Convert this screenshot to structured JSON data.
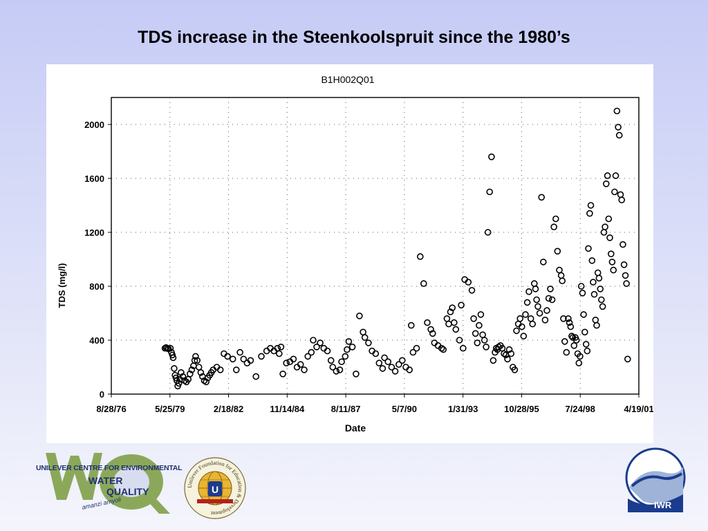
{
  "slide": {
    "title": "TDS increase in the Steenkoolspruit since the 1980’s"
  },
  "chart_data": {
    "type": "scatter",
    "title": "B1H002Q01",
    "xlabel": "Date",
    "ylabel": "TDS (mg/l)",
    "xlim": [
      "1976-08-28",
      "2001-04-19"
    ],
    "ylim": [
      0,
      2200
    ],
    "xticks": [
      "8/28/76",
      "5/25/79",
      "2/18/82",
      "11/14/84",
      "8/11/87",
      "5/7/90",
      "1/31/93",
      "10/28/95",
      "7/24/98",
      "4/19/01"
    ],
    "yticks": [
      "0",
      "400",
      "800",
      "1200",
      "1600",
      "2000"
    ],
    "grid": true,
    "legend": "none",
    "points": [
      [
        "1979-03-01",
        340
      ],
      [
        "1979-03-20",
        345
      ],
      [
        "1979-04-10",
        340
      ],
      [
        "1979-05-01",
        335
      ],
      [
        "1979-06-01",
        340
      ],
      [
        "1979-06-20",
        310
      ],
      [
        "1979-07-05",
        290
      ],
      [
        "1979-07-20",
        270
      ],
      [
        "1979-08-05",
        190
      ],
      [
        "1979-08-20",
        140
      ],
      [
        "1979-09-05",
        120
      ],
      [
        "1979-09-20",
        100
      ],
      [
        "1979-10-05",
        60
      ],
      [
        "1979-10-25",
        80
      ],
      [
        "1979-11-10",
        110
      ],
      [
        "1979-12-01",
        160
      ],
      [
        "1980-01-01",
        130
      ],
      [
        "1980-02-01",
        100
      ],
      [
        "1980-03-01",
        90
      ],
      [
        "1980-04-01",
        110
      ],
      [
        "1980-05-01",
        150
      ],
      [
        "1980-06-01",
        180
      ],
      [
        "1980-07-01",
        210
      ],
      [
        "1980-07-20",
        250
      ],
      [
        "1980-08-05",
        280
      ],
      [
        "1980-09-01",
        250
      ],
      [
        "1980-10-01",
        200
      ],
      [
        "1980-11-01",
        160
      ],
      [
        "1980-12-01",
        130
      ],
      [
        "1981-01-01",
        100
      ],
      [
        "1981-02-01",
        90
      ],
      [
        "1981-03-01",
        120
      ],
      [
        "1981-04-01",
        140
      ],
      [
        "1981-05-01",
        160
      ],
      [
        "1981-06-01",
        180
      ],
      [
        "1981-08-01",
        200
      ],
      [
        "1981-10-01",
        180
      ],
      [
        "1981-12-01",
        300
      ],
      [
        "1982-02-01",
        280
      ],
      [
        "1982-05-01",
        260
      ],
      [
        "1982-07-01",
        180
      ],
      [
        "1982-09-01",
        310
      ],
      [
        "1982-11-01",
        260
      ],
      [
        "1983-01-01",
        230
      ],
      [
        "1983-03-01",
        250
      ],
      [
        "1983-06-01",
        130
      ],
      [
        "1983-09-01",
        280
      ],
      [
        "1983-12-01",
        320
      ],
      [
        "1984-02-01",
        340
      ],
      [
        "1984-04-01",
        320
      ],
      [
        "1984-06-01",
        340
      ],
      [
        "1984-07-01",
        300
      ],
      [
        "1984-08-01",
        350
      ],
      [
        "1984-09-01",
        150
      ],
      [
        "1984-11-01",
        230
      ],
      [
        "1985-01-01",
        240
      ],
      [
        "1985-03-01",
        260
      ],
      [
        "1985-05-01",
        200
      ],
      [
        "1985-07-01",
        220
      ],
      [
        "1985-09-01",
        180
      ],
      [
        "1985-11-01",
        280
      ],
      [
        "1986-01-01",
        310
      ],
      [
        "1986-02-01",
        400
      ],
      [
        "1986-04-01",
        350
      ],
      [
        "1986-06-01",
        380
      ],
      [
        "1986-08-01",
        340
      ],
      [
        "1986-10-01",
        320
      ],
      [
        "1986-12-01",
        250
      ],
      [
        "1987-01-01",
        200
      ],
      [
        "1987-03-01",
        170
      ],
      [
        "1987-05-01",
        180
      ],
      [
        "1987-06-01",
        240
      ],
      [
        "1987-08-01",
        280
      ],
      [
        "1987-09-01",
        330
      ],
      [
        "1987-10-01",
        390
      ],
      [
        "1987-12-01",
        350
      ],
      [
        "1988-02-01",
        150
      ],
      [
        "1988-04-01",
        580
      ],
      [
        "1988-06-01",
        460
      ],
      [
        "1988-07-01",
        420
      ],
      [
        "1988-09-01",
        380
      ],
      [
        "1988-11-01",
        320
      ],
      [
        "1989-01-01",
        300
      ],
      [
        "1989-03-01",
        230
      ],
      [
        "1989-05-01",
        190
      ],
      [
        "1989-06-01",
        270
      ],
      [
        "1989-08-01",
        240
      ],
      [
        "1989-10-01",
        200
      ],
      [
        "1989-12-01",
        170
      ],
      [
        "1990-02-01",
        220
      ],
      [
        "1990-04-01",
        250
      ],
      [
        "1990-06-01",
        200
      ],
      [
        "1990-08-01",
        180
      ],
      [
        "1990-09-01",
        510
      ],
      [
        "1990-10-01",
        310
      ],
      [
        "1990-12-01",
        340
      ],
      [
        "1991-02-01",
        1020
      ],
      [
        "1991-04-01",
        820
      ],
      [
        "1991-06-01",
        530
      ],
      [
        "1991-08-01",
        480
      ],
      [
        "1991-09-01",
        450
      ],
      [
        "1991-10-01",
        380
      ],
      [
        "1991-12-01",
        360
      ],
      [
        "1992-02-01",
        340
      ],
      [
        "1992-03-01",
        330
      ],
      [
        "1992-05-01",
        560
      ],
      [
        "1992-06-01",
        520
      ],
      [
        "1992-07-01",
        610
      ],
      [
        "1992-08-01",
        640
      ],
      [
        "1992-09-01",
        530
      ],
      [
        "1992-10-01",
        480
      ],
      [
        "1992-12-01",
        400
      ],
      [
        "1993-01-01",
        660
      ],
      [
        "1993-02-01",
        340
      ],
      [
        "1993-03-01",
        850
      ],
      [
        "1993-05-01",
        830
      ],
      [
        "1993-07-01",
        770
      ],
      [
        "1993-08-01",
        560
      ],
      [
        "1993-09-01",
        450
      ],
      [
        "1993-10-01",
        380
      ],
      [
        "1993-11-01",
        510
      ],
      [
        "1993-12-01",
        590
      ],
      [
        "1994-01-01",
        440
      ],
      [
        "1994-02-01",
        400
      ],
      [
        "1994-03-01",
        350
      ],
      [
        "1994-04-01",
        1200
      ],
      [
        "1994-05-01",
        1500
      ],
      [
        "1994-06-01",
        1760
      ],
      [
        "1994-07-01",
        250
      ],
      [
        "1994-08-01",
        310
      ],
      [
        "1994-08-20",
        340
      ],
      [
        "1994-09-10",
        330
      ],
      [
        "1994-10-01",
        350
      ],
      [
        "1994-11-01",
        360
      ],
      [
        "1994-12-01",
        340
      ],
      [
        "1995-01-01",
        300
      ],
      [
        "1995-02-01",
        290
      ],
      [
        "1995-03-01",
        260
      ],
      [
        "1995-04-01",
        330
      ],
      [
        "1995-05-01",
        300
      ],
      [
        "1995-06-01",
        200
      ],
      [
        "1995-07-01",
        180
      ],
      [
        "1995-08-01",
        470
      ],
      [
        "1995-09-01",
        520
      ],
      [
        "1995-10-01",
        560
      ],
      [
        "1995-11-01",
        500
      ],
      [
        "1995-12-01",
        430
      ],
      [
        "1996-01-01",
        590
      ],
      [
        "1996-02-01",
        680
      ],
      [
        "1996-03-01",
        760
      ],
      [
        "1996-04-01",
        560
      ],
      [
        "1996-05-01",
        520
      ],
      [
        "1996-06-01",
        820
      ],
      [
        "1996-06-20",
        780
      ],
      [
        "1996-07-10",
        700
      ],
      [
        "1996-08-01",
        650
      ],
      [
        "1996-09-01",
        600
      ],
      [
        "1996-10-01",
        1460
      ],
      [
        "1996-11-01",
        980
      ],
      [
        "1996-12-01",
        550
      ],
      [
        "1997-01-01",
        620
      ],
      [
        "1997-02-01",
        710
      ],
      [
        "1997-03-01",
        780
      ],
      [
        "1997-04-01",
        700
      ],
      [
        "1997-05-01",
        1240
      ],
      [
        "1997-06-01",
        1300
      ],
      [
        "1997-07-01",
        1060
      ],
      [
        "1997-08-01",
        920
      ],
      [
        "1997-09-01",
        880
      ],
      [
        "1997-09-20",
        840
      ],
      [
        "1997-10-10",
        560
      ],
      [
        "1997-11-01",
        390
      ],
      [
        "1997-12-01",
        310
      ],
      [
        "1998-01-01",
        560
      ],
      [
        "1998-01-20",
        530
      ],
      [
        "1998-02-10",
        500
      ],
      [
        "1998-03-01",
        430
      ],
      [
        "1998-03-20",
        420
      ],
      [
        "1998-04-10",
        360
      ],
      [
        "1998-05-01",
        420
      ],
      [
        "1998-05-20",
        400
      ],
      [
        "1998-06-10",
        300
      ],
      [
        "1998-07-01",
        230
      ],
      [
        "1998-07-20",
        280
      ],
      [
        "1998-08-10",
        800
      ],
      [
        "1998-09-01",
        750
      ],
      [
        "1998-09-20",
        590
      ],
      [
        "1998-10-10",
        460
      ],
      [
        "1998-11-01",
        370
      ],
      [
        "1998-11-20",
        320
      ],
      [
        "1998-12-10",
        1080
      ],
      [
        "1999-01-01",
        1340
      ],
      [
        "1999-01-20",
        1400
      ],
      [
        "1999-02-10",
        990
      ],
      [
        "1999-03-01",
        830
      ],
      [
        "1999-03-20",
        740
      ],
      [
        "1999-04-10",
        550
      ],
      [
        "1999-05-01",
        510
      ],
      [
        "1999-05-20",
        900
      ],
      [
        "1999-06-10",
        860
      ],
      [
        "1999-07-01",
        780
      ],
      [
        "1999-07-20",
        700
      ],
      [
        "1999-08-10",
        650
      ],
      [
        "1999-09-01",
        1200
      ],
      [
        "1999-09-20",
        1240
      ],
      [
        "1999-10-10",
        1560
      ],
      [
        "1999-11-01",
        1620
      ],
      [
        "1999-11-20",
        1300
      ],
      [
        "1999-12-10",
        1160
      ],
      [
        "2000-01-01",
        1040
      ],
      [
        "2000-01-20",
        980
      ],
      [
        "2000-02-10",
        920
      ],
      [
        "2000-03-01",
        1500
      ],
      [
        "2000-03-20",
        1620
      ],
      [
        "2000-04-10",
        2100
      ],
      [
        "2000-05-01",
        1980
      ],
      [
        "2000-05-20",
        1920
      ],
      [
        "2000-06-10",
        1480
      ],
      [
        "2000-07-01",
        1440
      ],
      [
        "2000-07-20",
        1110
      ],
      [
        "2000-08-10",
        960
      ],
      [
        "2000-09-01",
        880
      ],
      [
        "2000-09-20",
        820
      ],
      [
        "2000-10-10",
        260
      ]
    ]
  },
  "logos": {
    "unilever_centre": {
      "line1": "UNILEVER CENTRE FOR ENVIRONMENTAL",
      "line2": "WATER",
      "line3": "QUALITY",
      "line4": "amanzi amyoli"
    },
    "unilever_foundation": {
      "arc_text": "Unilever Foundation for Education & Development",
      "center": "U"
    },
    "iwr": {
      "label": "IWR"
    }
  },
  "colors": {
    "background_top": "#c6cbf6",
    "background_bottom": "#f4f5fc",
    "logo_green": "#8ba85a",
    "logo_navy": "#1d3170",
    "iwr_blue": "#1b3c8e"
  }
}
